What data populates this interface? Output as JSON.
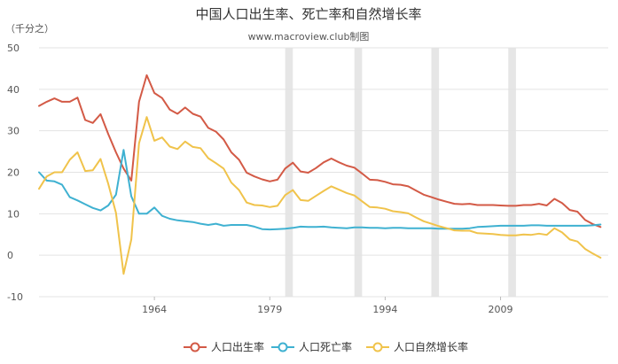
{
  "chart_data": {
    "type": "line",
    "title": "中国人口出生率、死亡率和自然增长率",
    "subtitle": "www.macroview.club制图",
    "ylabel": "（千分之）",
    "xlabel": "",
    "ylim": [
      -10,
      50
    ],
    "yticks": [
      -10,
      0,
      10,
      20,
      30,
      40,
      50
    ],
    "xticks": [
      1964,
      1979,
      1994,
      2009
    ],
    "xlim": [
      1949,
      2023
    ],
    "grid": true,
    "legend_position": "bottom",
    "shaded_periods": [
      [
        1981,
        1982
      ],
      [
        1990,
        1991
      ],
      [
        2000,
        2001
      ],
      [
        2010,
        2011
      ]
    ],
    "x": [
      1949,
      1950,
      1951,
      1952,
      1953,
      1954,
      1955,
      1956,
      1957,
      1958,
      1959,
      1960,
      1961,
      1962,
      1963,
      1964,
      1965,
      1966,
      1967,
      1968,
      1969,
      1970,
      1971,
      1972,
      1973,
      1974,
      1975,
      1976,
      1977,
      1978,
      1979,
      1980,
      1981,
      1982,
      1983,
      1984,
      1985,
      1986,
      1987,
      1988,
      1989,
      1990,
      1991,
      1992,
      1993,
      1994,
      1995,
      1996,
      1997,
      1998,
      1999,
      2000,
      2001,
      2002,
      2003,
      2004,
      2005,
      2006,
      2007,
      2008,
      2009,
      2010,
      2011,
      2012,
      2013,
      2014,
      2015,
      2016,
      2017,
      2018,
      2019,
      2020,
      2021,
      2022
    ],
    "series": [
      {
        "name": "人口出生率",
        "color": "#d35a46",
        "values": [
          36.0,
          37.0,
          37.8,
          37.0,
          37.0,
          38.0,
          32.6,
          31.9,
          34.0,
          29.2,
          24.8,
          20.9,
          18.0,
          37.0,
          43.4,
          39.1,
          37.9,
          35.1,
          34.1,
          35.6,
          34.1,
          33.4,
          30.7,
          29.8,
          27.9,
          24.8,
          23.0,
          19.9,
          19.0,
          18.3,
          17.8,
          18.2,
          20.9,
          22.3,
          20.2,
          19.9,
          21.0,
          22.4,
          23.3,
          22.4,
          21.6,
          21.1,
          19.7,
          18.2,
          18.1,
          17.7,
          17.1,
          17.0,
          16.6,
          15.6,
          14.6,
          14.0,
          13.4,
          12.9,
          12.4,
          12.3,
          12.4,
          12.1,
          12.1,
          12.1,
          12.0,
          11.9,
          11.9,
          12.1,
          12.1,
          12.4,
          12.0,
          13.6,
          12.6,
          10.9,
          10.5,
          8.5,
          7.5,
          6.8
        ]
      },
      {
        "name": "人口死亡率",
        "color": "#3fb1d1",
        "values": [
          20.0,
          18.0,
          17.8,
          17.0,
          14.0,
          13.2,
          12.3,
          11.4,
          10.8,
          12.0,
          14.6,
          25.4,
          14.2,
          10.0,
          10.0,
          11.5,
          9.5,
          8.8,
          8.4,
          8.2,
          8.0,
          7.6,
          7.3,
          7.6,
          7.1,
          7.3,
          7.3,
          7.3,
          6.9,
          6.3,
          6.2,
          6.3,
          6.4,
          6.6,
          6.9,
          6.8,
          6.8,
          6.9,
          6.7,
          6.6,
          6.5,
          6.7,
          6.7,
          6.6,
          6.6,
          6.5,
          6.6,
          6.6,
          6.5,
          6.5,
          6.5,
          6.5,
          6.4,
          6.4,
          6.4,
          6.4,
          6.5,
          6.8,
          6.9,
          7.0,
          7.1,
          7.1,
          7.1,
          7.1,
          7.2,
          7.2,
          7.1,
          7.1,
          7.1,
          7.1,
          7.1,
          7.1,
          7.2,
          7.4
        ]
      },
      {
        "name": "人口自然增长率",
        "color": "#f0c34b",
        "values": [
          16.0,
          19.0,
          20.0,
          20.0,
          23.0,
          24.8,
          20.3,
          20.5,
          23.2,
          17.2,
          10.2,
          -4.5,
          3.8,
          27.0,
          33.3,
          27.6,
          28.4,
          26.2,
          25.6,
          27.4,
          26.1,
          25.8,
          23.4,
          22.2,
          20.9,
          17.5,
          15.7,
          12.7,
          12.1,
          12.0,
          11.6,
          11.9,
          14.5,
          15.7,
          13.3,
          13.1,
          14.3,
          15.5,
          16.6,
          15.8,
          15.0,
          14.4,
          13.0,
          11.6,
          11.5,
          11.2,
          10.6,
          10.4,
          10.1,
          9.1,
          8.2,
          7.6,
          7.0,
          6.5,
          6.0,
          5.9,
          5.9,
          5.3,
          5.2,
          5.1,
          4.9,
          4.8,
          4.8,
          5.0,
          4.9,
          5.2,
          4.9,
          6.5,
          5.5,
          3.8,
          3.3,
          1.5,
          0.4,
          -0.6
        ]
      }
    ]
  }
}
